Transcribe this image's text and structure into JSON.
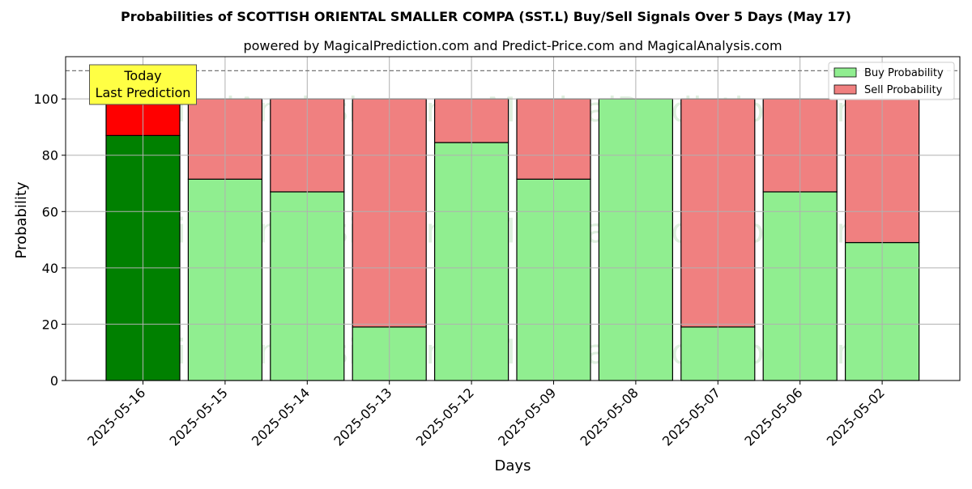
{
  "chart_data": {
    "type": "bar",
    "stacked": true,
    "title": "Probabilities of SCOTTISH ORIENTAL SMALLER COMPA (SST.L) Buy/Sell Signals Over 5 Days (May 17)",
    "subtitle": "powered by MagicalPrediction.com and Predict-Price.com and MagicalAnalysis.com",
    "xlabel": "Days",
    "ylabel": "Probability",
    "ylim": [
      0,
      115
    ],
    "yticks": [
      0,
      20,
      40,
      60,
      80,
      100
    ],
    "grid": true,
    "legend_position": "top-right",
    "reference_line": 110,
    "categories": [
      "2025-05-16",
      "2025-05-15",
      "2025-05-14",
      "2025-05-13",
      "2025-05-12",
      "2025-05-09",
      "2025-05-08",
      "2025-05-07",
      "2025-05-06",
      "2025-05-02"
    ],
    "series": [
      {
        "name": "Buy Probability",
        "color": "#90EE90",
        "highlight_color": "#008000",
        "values": [
          87,
          71.5,
          67,
          19,
          84.5,
          71.5,
          100,
          19,
          67,
          49
        ]
      },
      {
        "name": "Sell Probability",
        "color": "#F08080",
        "highlight_color": "#FF0000",
        "values": [
          13,
          28.5,
          33,
          81,
          15.5,
          28.5,
          0,
          81,
          33,
          51
        ]
      }
    ],
    "annotation": {
      "lines": [
        "Today",
        "Last Prediction"
      ],
      "category_index": 0,
      "background": "#FFFF44"
    },
    "watermarks": [
      "MagicalAnalysis.com",
      "MagicalPrediction.com"
    ]
  }
}
